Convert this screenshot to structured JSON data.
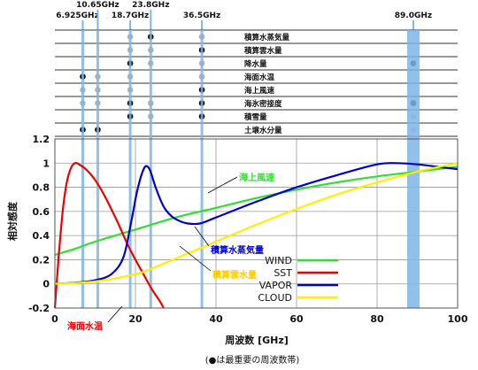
{
  "chart_data": {
    "type": "line",
    "xlabel": "周波数 [GHz]",
    "ylabel": "相対感度",
    "xlim": [
      0,
      100
    ],
    "ylim": [
      -0.2,
      1.2
    ],
    "x_ticks": [
      "0",
      "20",
      "40",
      "60",
      "80",
      "100"
    ],
    "y_ticks": [
      "-0.2",
      "0",
      "0.2",
      "0.4",
      "0.6",
      "0.8",
      "1",
      "1.2"
    ],
    "grid": true,
    "caption": "(●は最重要の周波数帯)",
    "bands": [
      {
        "label": "6.925GHz",
        "freq": 6.925
      },
      {
        "label": "10.65GHz",
        "freq": 10.65
      },
      {
        "label": "18.7GHz",
        "freq": 18.7
      },
      {
        "label": "23.8GHz",
        "freq": 23.8
      },
      {
        "label": "36.5GHz",
        "freq": 36.5
      },
      {
        "label": "89.0GHz",
        "freq": 89.0
      }
    ],
    "parameters": [
      {
        "name": "積算水蒸気量",
        "marks": [
          "",
          "",
          "o",
          "*",
          "o",
          ""
        ]
      },
      {
        "name": "積算雲水量",
        "marks": [
          "",
          "",
          "o",
          "o",
          "*",
          ""
        ]
      },
      {
        "name": "降水量",
        "marks": [
          "",
          "",
          "*",
          "o",
          "o",
          "*"
        ]
      },
      {
        "name": "海面水温",
        "marks": [
          "*",
          "o",
          "o",
          "",
          "o",
          ""
        ]
      },
      {
        "name": "海上風速",
        "marks": [
          "o",
          "o",
          "o",
          "",
          "*",
          ""
        ]
      },
      {
        "name": "海氷密接度",
        "marks": [
          "o",
          "o",
          "*",
          "o",
          "*",
          "*"
        ]
      },
      {
        "name": "積雪量",
        "marks": [
          "",
          "",
          "*",
          "o",
          "*",
          "o"
        ]
      },
      {
        "name": "土壌水分量",
        "marks": [
          "*",
          "*",
          "",
          "",
          "",
          "o"
        ]
      }
    ],
    "series": [
      {
        "name": "WIND",
        "color": "#33dd33",
        "points": [
          [
            0,
            0.24
          ],
          [
            5,
            0.29
          ],
          [
            10,
            0.35
          ],
          [
            20,
            0.45
          ],
          [
            30,
            0.55
          ],
          [
            40,
            0.63
          ],
          [
            50,
            0.71
          ],
          [
            60,
            0.78
          ],
          [
            70,
            0.84
          ],
          [
            80,
            0.89
          ],
          [
            90,
            0.93
          ],
          [
            100,
            0.97
          ]
        ]
      },
      {
        "name": "SST",
        "color": "#ee0000",
        "points": [
          [
            0,
            -0.2
          ],
          [
            1,
            0.25
          ],
          [
            2,
            0.62
          ],
          [
            3,
            0.85
          ],
          [
            4,
            0.96
          ],
          [
            5,
            1.0
          ],
          [
            6,
            0.99
          ],
          [
            8,
            0.94
          ],
          [
            10,
            0.86
          ],
          [
            12,
            0.75
          ],
          [
            14,
            0.62
          ],
          [
            16,
            0.48
          ],
          [
            18,
            0.33
          ],
          [
            20,
            0.2
          ],
          [
            22,
            0.08
          ],
          [
            24,
            -0.04
          ],
          [
            26,
            -0.14
          ],
          [
            27,
            -0.2
          ]
        ]
      },
      {
        "name": "VAPOR",
        "color": "#0000cc",
        "points": [
          [
            0,
            0.0
          ],
          [
            5,
            0.01
          ],
          [
            10,
            0.03
          ],
          [
            14,
            0.08
          ],
          [
            17,
            0.22
          ],
          [
            19,
            0.52
          ],
          [
            20.5,
            0.78
          ],
          [
            22.2,
            0.96
          ],
          [
            23.5,
            0.95
          ],
          [
            25,
            0.8
          ],
          [
            27,
            0.64
          ],
          [
            29,
            0.56
          ],
          [
            31,
            0.52
          ],
          [
            33,
            0.5
          ],
          [
            36,
            0.5
          ],
          [
            40,
            0.55
          ],
          [
            50,
            0.68
          ],
          [
            60,
            0.8
          ],
          [
            70,
            0.9
          ],
          [
            80,
            0.99
          ],
          [
            85,
            1.0
          ],
          [
            90,
            0.99
          ],
          [
            95,
            0.97
          ],
          [
            100,
            0.95
          ]
        ]
      },
      {
        "name": "CLOUD",
        "color": "#ffee00",
        "points": [
          [
            0,
            0.0
          ],
          [
            10,
            0.02
          ],
          [
            20,
            0.08
          ],
          [
            25,
            0.14
          ],
          [
            30,
            0.21
          ],
          [
            40,
            0.35
          ],
          [
            50,
            0.49
          ],
          [
            60,
            0.62
          ],
          [
            70,
            0.74
          ],
          [
            80,
            0.84
          ],
          [
            90,
            0.93
          ],
          [
            100,
            1.0
          ]
        ]
      }
    ],
    "legend_position": "bottom-right",
    "annotations": [
      {
        "text": "海上風速",
        "color": "#33dd33"
      },
      {
        "text": "積算水蒸気量",
        "color": "#0000cc"
      },
      {
        "text": "積算雲水量",
        "color": "#ffcc00"
      },
      {
        "text": "海面水温",
        "color": "#ee0000"
      }
    ]
  }
}
